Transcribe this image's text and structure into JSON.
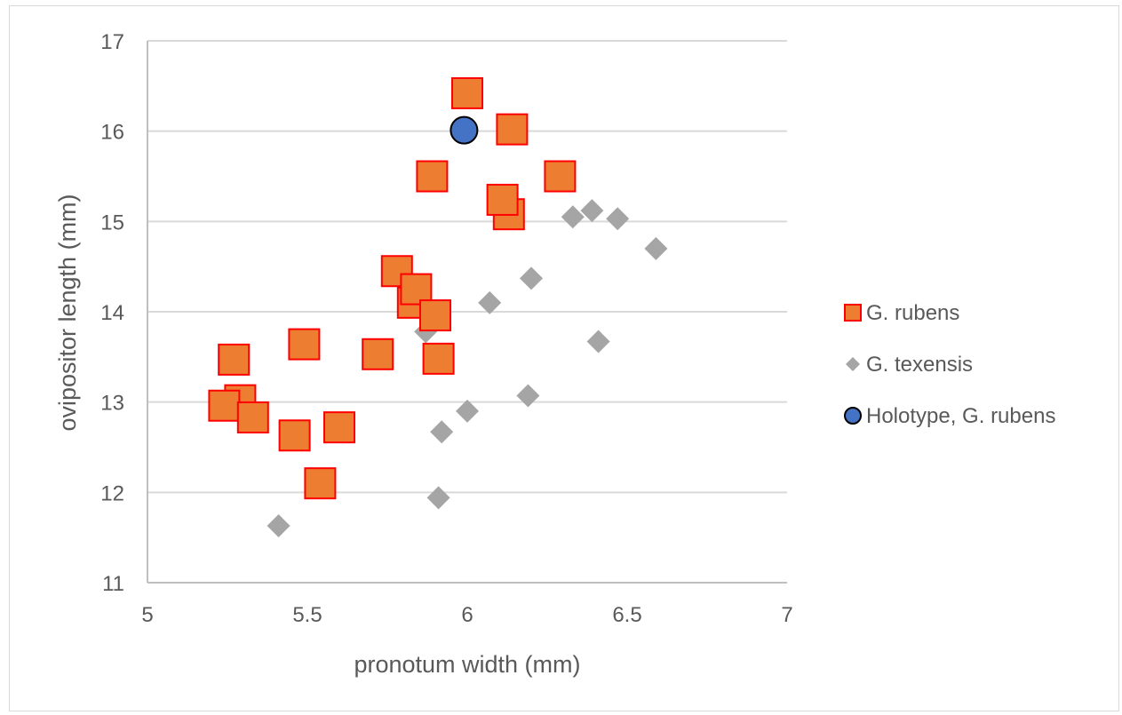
{
  "chart_data": {
    "type": "scatter",
    "xlabel": "pronotum width (mm)",
    "ylabel": "ovipositor length (mm)",
    "xlim": [
      5,
      7
    ],
    "ylim": [
      11,
      17
    ],
    "xticks": [
      5,
      5.5,
      6,
      6.5,
      7
    ],
    "xtick_labels": [
      "5",
      "5.5",
      "6",
      "6.5",
      "7"
    ],
    "yticks": [
      11,
      12,
      13,
      14,
      15,
      16,
      17
    ],
    "ytick_labels": [
      "11",
      "12",
      "13",
      "14",
      "15",
      "16",
      "17"
    ],
    "grid": "horizontal",
    "legend_position": "right",
    "series": [
      {
        "name": "G. rubens",
        "marker": "square",
        "color": "#ED7D31",
        "edge_color": "#FF0000",
        "points": [
          {
            "x": 6.0,
            "y": 16.42
          },
          {
            "x": 6.14,
            "y": 16.02
          },
          {
            "x": 5.89,
            "y": 15.5
          },
          {
            "x": 6.29,
            "y": 15.5
          },
          {
            "x": 6.13,
            "y": 15.08
          },
          {
            "x": 6.11,
            "y": 15.24
          },
          {
            "x": 5.78,
            "y": 14.45
          },
          {
            "x": 5.83,
            "y": 14.1
          },
          {
            "x": 5.84,
            "y": 14.25
          },
          {
            "x": 5.9,
            "y": 13.96
          },
          {
            "x": 5.49,
            "y": 13.64
          },
          {
            "x": 5.72,
            "y": 13.53
          },
          {
            "x": 5.91,
            "y": 13.48
          },
          {
            "x": 5.27,
            "y": 13.47
          },
          {
            "x": 5.29,
            "y": 13.02
          },
          {
            "x": 5.24,
            "y": 12.96
          },
          {
            "x": 5.33,
            "y": 12.83
          },
          {
            "x": 5.6,
            "y": 12.72
          },
          {
            "x": 5.46,
            "y": 12.63
          },
          {
            "x": 5.54,
            "y": 12.1
          }
        ]
      },
      {
        "name": "G. texensis",
        "marker": "diamond",
        "color": "#A5A5A5",
        "points": [
          {
            "x": 6.33,
            "y": 15.05
          },
          {
            "x": 6.39,
            "y": 15.12
          },
          {
            "x": 6.47,
            "y": 15.03
          },
          {
            "x": 6.59,
            "y": 14.7
          },
          {
            "x": 6.2,
            "y": 14.37
          },
          {
            "x": 6.07,
            "y": 14.1
          },
          {
            "x": 5.87,
            "y": 13.78
          },
          {
            "x": 6.41,
            "y": 13.67
          },
          {
            "x": 6.19,
            "y": 13.07
          },
          {
            "x": 6.0,
            "y": 12.9
          },
          {
            "x": 5.92,
            "y": 12.67
          },
          {
            "x": 5.91,
            "y": 11.94
          },
          {
            "x": 5.41,
            "y": 11.63
          }
        ]
      },
      {
        "name": "Holotype, G. rubens",
        "marker": "circle",
        "color": "#4472C4",
        "edge_color": "#000000",
        "points": [
          {
            "x": 5.99,
            "y": 16.01
          }
        ]
      }
    ]
  }
}
